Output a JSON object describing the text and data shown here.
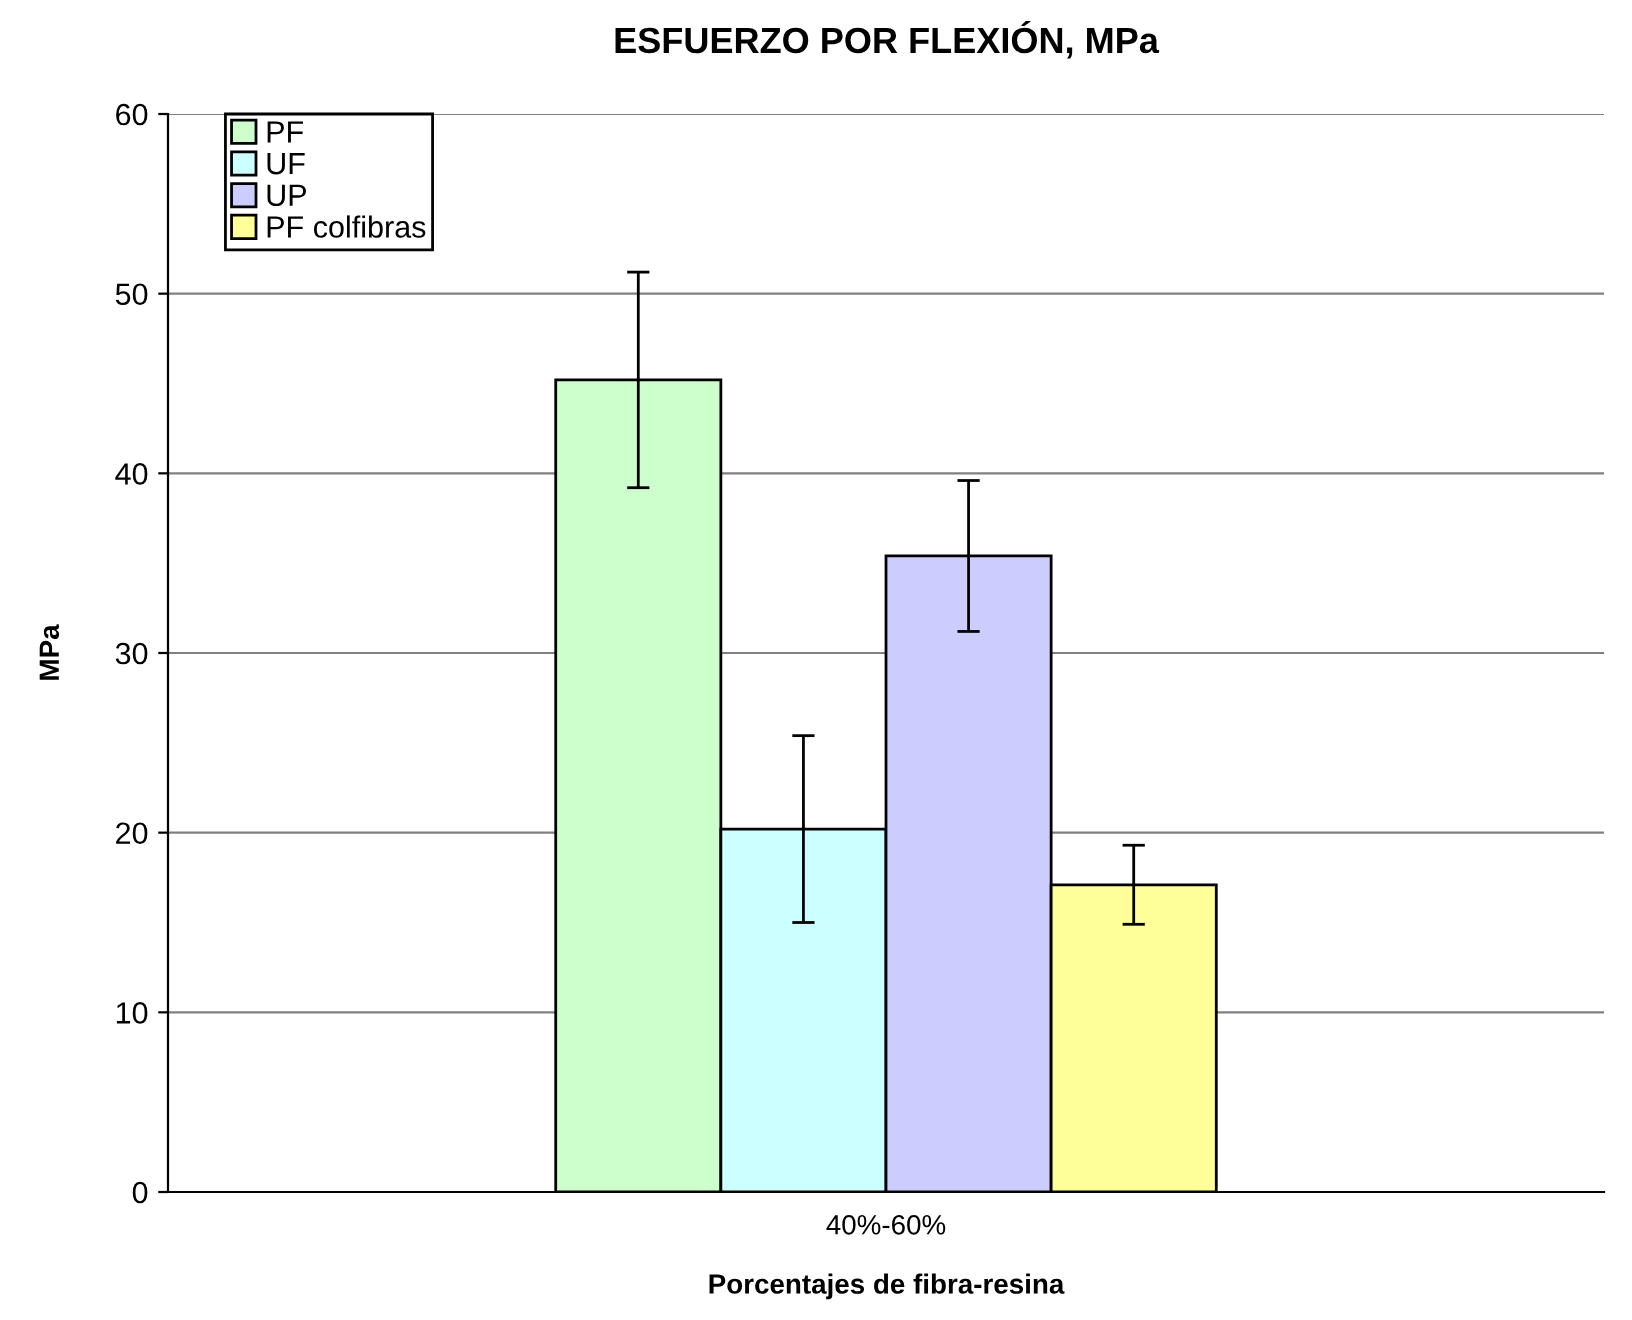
{
  "chart_data": {
    "type": "bar",
    "title": "ESFUERZO POR FLEXIÓN, MPa",
    "xlabel": "Porcentajes de fibra-resina",
    "ylabel": "MPa",
    "categories": [
      "40%-60%"
    ],
    "series": [
      {
        "name": "PF",
        "color": "#ccffcc",
        "values": [
          45.2
        ],
        "errors": [
          6.0
        ]
      },
      {
        "name": "UF",
        "color": "#ccffff",
        "values": [
          20.2
        ],
        "errors": [
          5.2
        ]
      },
      {
        "name": "UP",
        "color": "#ccccff",
        "values": [
          35.4
        ],
        "errors": [
          4.2
        ]
      },
      {
        "name": "PF colfibras",
        "color": "#ffff99",
        "values": [
          17.1
        ],
        "errors": [
          2.2
        ]
      }
    ],
    "ylim": [
      0,
      60
    ],
    "yticks": [
      0,
      10,
      20,
      30,
      40,
      50,
      60
    ],
    "grid": "y",
    "legend": "top left"
  }
}
